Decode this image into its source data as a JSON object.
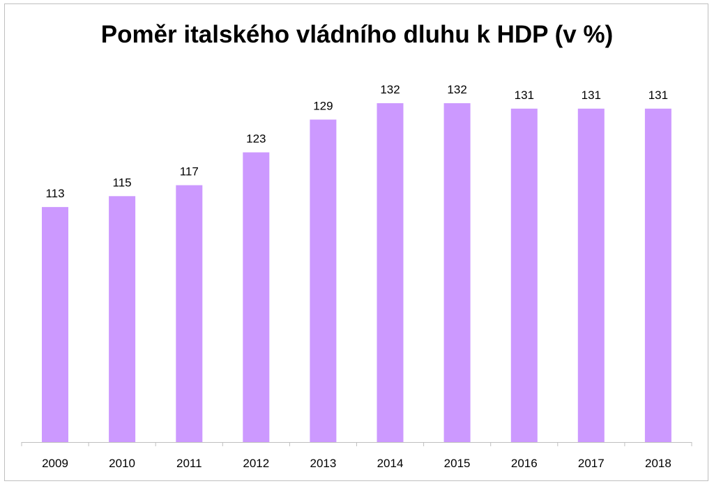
{
  "chart_data": {
    "type": "bar",
    "title": "Poměr italského vládního dluhu k HDP (v %)",
    "categories": [
      "2009",
      "2010",
      "2011",
      "2012",
      "2013",
      "2014",
      "2015",
      "2016",
      "2017",
      "2018"
    ],
    "values": [
      113,
      115,
      117,
      123,
      129,
      132,
      132,
      131,
      131,
      131
    ],
    "data_labels": [
      "113",
      "115",
      "117",
      "123",
      "129",
      "132",
      "132",
      "131",
      "131",
      "131"
    ],
    "xlabel": "",
    "ylabel": "",
    "ylim": [
      70,
      135
    ],
    "grid": false,
    "legend": "none",
    "bar_color": "#cc99ff",
    "axis_color": "#bfbfbf"
  }
}
